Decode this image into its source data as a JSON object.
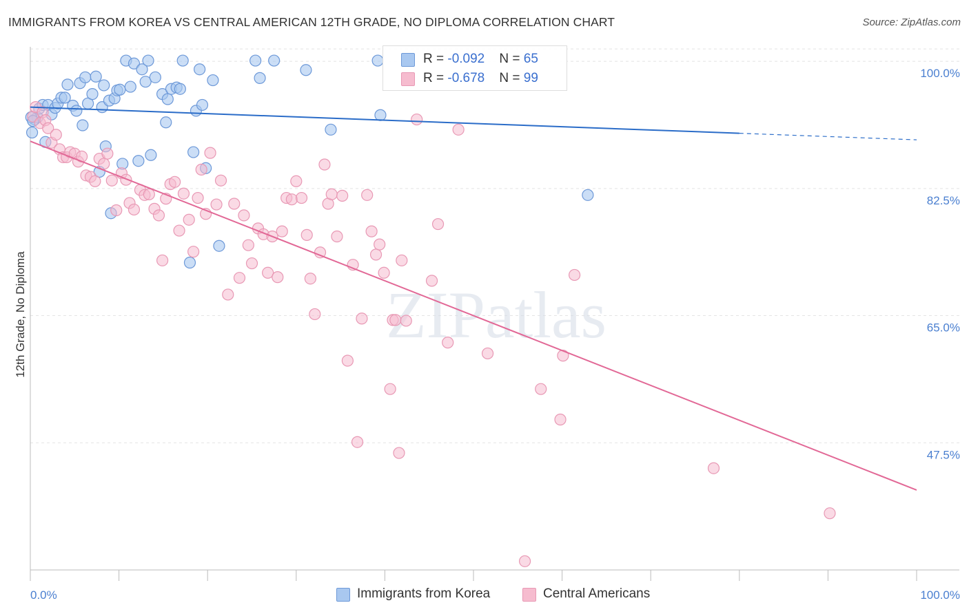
{
  "title": "IMMIGRANTS FROM KOREA VS CENTRAL AMERICAN 12TH GRADE, NO DIPLOMA CORRELATION CHART",
  "source": "Source: ZipAtlas.com",
  "watermark": "ZIPatlas",
  "legend_top": {
    "rows": [
      {
        "r_label": "R = ",
        "r_value": "-0.092",
        "n_label": "N = ",
        "n_value": "65"
      },
      {
        "r_label": "R = ",
        "r_value": "-0.678",
        "n_label": "N = ",
        "n_value": "99"
      }
    ]
  },
  "legend_bottom": {
    "items": [
      {
        "label": "Immigrants from Korea"
      },
      {
        "label": "Central Americans"
      }
    ]
  },
  "colors": {
    "korea_fill": "#a9c8f0",
    "korea_stroke": "#6c98d8",
    "korea_line": "#2a6cc8",
    "central_fill": "#f6bccf",
    "central_stroke": "#e898b4",
    "central_line": "#e26896",
    "tick_text": "#4a7fd0",
    "grid": "#e4e4e4"
  },
  "chart_data": {
    "type": "scatter",
    "title": "IMMIGRANTS FROM KOREA VS CENTRAL AMERICAN 12TH GRADE, NO DIPLOMA CORRELATION CHART",
    "xlabel": "",
    "ylabel": "12th Grade, No Diploma",
    "xlim": [
      0,
      100
    ],
    "ylim": [
      30,
      102
    ],
    "x_ticks": [
      "0.0%",
      "100.0%"
    ],
    "y_ticks": [
      {
        "value": 100.0,
        "label": "100.0%"
      },
      {
        "value": 82.5,
        "label": "82.5%"
      },
      {
        "value": 65.0,
        "label": "65.0%"
      },
      {
        "value": 47.5,
        "label": "47.5%"
      }
    ],
    "grid": true,
    "legend_placement": "bottom",
    "series": [
      {
        "name": "Immigrants from Korea",
        "trend": {
          "x0": 0,
          "y0": 93.7,
          "x1": 80,
          "y1": 90.1,
          "dashed_to_x": 100,
          "dashed_to_y": 89.2
        },
        "points": [
          [
            0.2,
            90.2
          ],
          [
            0.5,
            92.0
          ],
          [
            0.8,
            92.3
          ],
          [
            1.0,
            93.5
          ],
          [
            1.4,
            94.0
          ],
          [
            1.7,
            88.9
          ],
          [
            2.0,
            94.0
          ],
          [
            2.4,
            92.7
          ],
          [
            2.8,
            93.6
          ],
          [
            3.1,
            94.2
          ],
          [
            3.5,
            95.0
          ],
          [
            3.9,
            95.0
          ],
          [
            4.2,
            96.8
          ],
          [
            4.8,
            93.9
          ],
          [
            5.2,
            93.2
          ],
          [
            5.6,
            97.0
          ],
          [
            5.9,
            91.2
          ],
          [
            6.2,
            97.8
          ],
          [
            6.5,
            94.2
          ],
          [
            7.0,
            95.5
          ],
          [
            7.4,
            97.9
          ],
          [
            7.8,
            84.8
          ],
          [
            8.1,
            93.7
          ],
          [
            8.3,
            96.7
          ],
          [
            8.5,
            88.3
          ],
          [
            8.9,
            94.6
          ],
          [
            9.1,
            79.1
          ],
          [
            9.5,
            94.9
          ],
          [
            9.8,
            96.0
          ],
          [
            10.1,
            96.1
          ],
          [
            10.4,
            85.9
          ],
          [
            10.8,
            100.1
          ],
          [
            11.3,
            96.5
          ],
          [
            11.7,
            99.7
          ],
          [
            12.2,
            86.3
          ],
          [
            12.6,
            98.9
          ],
          [
            13.0,
            97.2
          ],
          [
            13.3,
            100.1
          ],
          [
            13.6,
            87.1
          ],
          [
            14.1,
            97.8
          ],
          [
            14.9,
            95.5
          ],
          [
            15.3,
            91.6
          ],
          [
            15.5,
            94.8
          ],
          [
            15.9,
            96.2
          ],
          [
            16.5,
            96.4
          ],
          [
            16.9,
            96.2
          ],
          [
            17.2,
            100.1
          ],
          [
            18.0,
            72.3
          ],
          [
            18.4,
            87.5
          ],
          [
            18.7,
            93.2
          ],
          [
            19.1,
            98.9
          ],
          [
            19.4,
            94.0
          ],
          [
            19.8,
            85.3
          ],
          [
            20.6,
            97.4
          ],
          [
            21.3,
            74.6
          ],
          [
            25.4,
            100.1
          ],
          [
            25.9,
            97.7
          ],
          [
            27.5,
            100.1
          ],
          [
            31.1,
            98.8
          ],
          [
            33.9,
            90.6
          ],
          [
            39.2,
            100.1
          ],
          [
            39.5,
            92.6
          ],
          [
            62.9,
            81.6
          ],
          [
            0.1,
            92.3
          ],
          [
            0.3,
            91.8
          ]
        ]
      },
      {
        "name": "Central Americans",
        "trend": {
          "x0": 0,
          "y0": 89.0,
          "x1": 100,
          "y1": 41.0
        },
        "points": [
          [
            0.3,
            92.4
          ],
          [
            0.6,
            93.7
          ],
          [
            1.1,
            91.5
          ],
          [
            1.4,
            93.0
          ],
          [
            1.7,
            91.9
          ],
          [
            2.0,
            90.8
          ],
          [
            2.4,
            88.8
          ],
          [
            2.9,
            89.9
          ],
          [
            3.3,
            87.9
          ],
          [
            3.7,
            86.8
          ],
          [
            4.1,
            86.8
          ],
          [
            4.5,
            87.5
          ],
          [
            5.0,
            87.3
          ],
          [
            5.4,
            86.2
          ],
          [
            5.8,
            86.9
          ],
          [
            6.3,
            84.3
          ],
          [
            6.8,
            84.1
          ],
          [
            7.3,
            83.5
          ],
          [
            7.8,
            86.6
          ],
          [
            8.3,
            85.9
          ],
          [
            8.7,
            87.3
          ],
          [
            9.2,
            83.6
          ],
          [
            9.7,
            79.5
          ],
          [
            10.3,
            84.6
          ],
          [
            10.8,
            83.7
          ],
          [
            11.2,
            80.5
          ],
          [
            11.7,
            79.6
          ],
          [
            12.4,
            82.3
          ],
          [
            12.9,
            81.6
          ],
          [
            13.4,
            81.7
          ],
          [
            14.0,
            79.7
          ],
          [
            14.5,
            78.8
          ],
          [
            14.9,
            72.6
          ],
          [
            15.3,
            81.1
          ],
          [
            15.8,
            83.1
          ],
          [
            16.3,
            83.4
          ],
          [
            16.8,
            76.7
          ],
          [
            17.3,
            81.8
          ],
          [
            17.9,
            78.2
          ],
          [
            18.4,
            73.8
          ],
          [
            18.9,
            81.2
          ],
          [
            19.3,
            85.1
          ],
          [
            19.8,
            79.0
          ],
          [
            20.3,
            87.4
          ],
          [
            21.0,
            80.3
          ],
          [
            21.5,
            83.6
          ],
          [
            22.3,
            67.9
          ],
          [
            23.0,
            80.4
          ],
          [
            23.6,
            70.2
          ],
          [
            24.1,
            78.8
          ],
          [
            24.6,
            74.7
          ],
          [
            25.0,
            72.2
          ],
          [
            25.7,
            77.0
          ],
          [
            26.3,
            76.2
          ],
          [
            26.8,
            70.9
          ],
          [
            27.3,
            75.9
          ],
          [
            27.9,
            70.3
          ],
          [
            28.4,
            76.6
          ],
          [
            28.9,
            81.2
          ],
          [
            29.5,
            81.0
          ],
          [
            30.0,
            83.5
          ],
          [
            30.6,
            81.2
          ],
          [
            31.2,
            76.1
          ],
          [
            31.6,
            70.1
          ],
          [
            32.1,
            65.2
          ],
          [
            32.7,
            73.7
          ],
          [
            33.2,
            85.8
          ],
          [
            33.6,
            80.4
          ],
          [
            34.0,
            81.7
          ],
          [
            34.6,
            75.9
          ],
          [
            35.2,
            81.5
          ],
          [
            35.8,
            58.8
          ],
          [
            36.4,
            72.0
          ],
          [
            36.9,
            47.6
          ],
          [
            37.4,
            64.6
          ],
          [
            38.0,
            81.6
          ],
          [
            38.5,
            76.6
          ],
          [
            39.0,
            73.4
          ],
          [
            39.4,
            74.8
          ],
          [
            39.9,
            70.9
          ],
          [
            40.6,
            54.9
          ],
          [
            40.9,
            64.4
          ],
          [
            41.2,
            64.4
          ],
          [
            41.6,
            46.1
          ],
          [
            41.9,
            72.6
          ],
          [
            42.4,
            64.3
          ],
          [
            43.6,
            92.0
          ],
          [
            45.3,
            69.8
          ],
          [
            46.0,
            77.6
          ],
          [
            47.1,
            61.3
          ],
          [
            48.3,
            90.6
          ],
          [
            51.6,
            59.8
          ],
          [
            57.6,
            54.9
          ],
          [
            59.8,
            50.7
          ],
          [
            60.1,
            59.5
          ],
          [
            61.4,
            70.6
          ],
          [
            77.1,
            44.0
          ],
          [
            90.2,
            37.8
          ],
          [
            55.8,
            31.2
          ]
        ]
      }
    ]
  }
}
